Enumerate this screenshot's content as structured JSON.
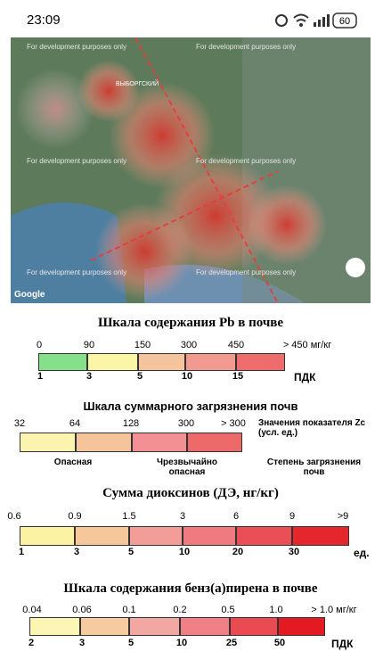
{
  "status_bar": {
    "time": "23:09",
    "battery": "60"
  },
  "map": {
    "watermark": "For development purposes only",
    "place": "ВЫБОРГСКИЙ",
    "logo": "Google"
  },
  "scales": [
    {
      "title": "Шкала содержания Pb в почве",
      "top_labels": [
        "0",
        "90",
        "150",
        "300",
        "450",
        "> 450 мг/кг"
      ],
      "bottom_labels": [
        "1",
        "3",
        "5",
        "10",
        "15"
      ],
      "unit": "ПДК",
      "colors": [
        "#86e08a",
        "#fbf6a6",
        "#f6c49c",
        "#f29a90",
        "#ef6c6c"
      ]
    },
    {
      "title": "Шкала суммарного загрязнения почв",
      "top_labels": [
        "32",
        "64",
        "128",
        "300",
        "> 300"
      ],
      "side_top": "Значения показателя Zc (усл. ед.)",
      "bottom_labels": [
        "Опасная",
        "Чрезвычайно опасная"
      ],
      "side_bottom": "Степень загрязнения почв",
      "colors": [
        "#fbf3b0",
        "#f6c49a",
        "#f29096",
        "#ec6a6a"
      ]
    },
    {
      "title": "Сумма диоксинов (ДЭ, нг/кг)",
      "top_labels": [
        "0.6",
        "0.9",
        "1.5",
        "3",
        "6",
        "9",
        ">9"
      ],
      "bottom_labels": [
        "1",
        "3",
        "5",
        "10",
        "20",
        "30"
      ],
      "unit": "ед.",
      "colors": [
        "#fbf2a4",
        "#f7c79c",
        "#f39d98",
        "#ef7a80",
        "#ea4e56",
        "#e5262c"
      ]
    },
    {
      "title": "Шкала содержания бенз(а)пирена в почве",
      "top_labels": [
        "0.04",
        "0.06",
        "0.1",
        "0.2",
        "0.5",
        "1.0",
        "> 1.0 мг/кг"
      ],
      "bottom_labels": [
        "2",
        "3",
        "5",
        "10",
        "25",
        "50"
      ],
      "unit": "ПДК",
      "colors": [
        "#fbf6b4",
        "#f6cba0",
        "#f3a7a2",
        "#ef8186",
        "#ea4a52",
        "#e31a22"
      ]
    }
  ]
}
